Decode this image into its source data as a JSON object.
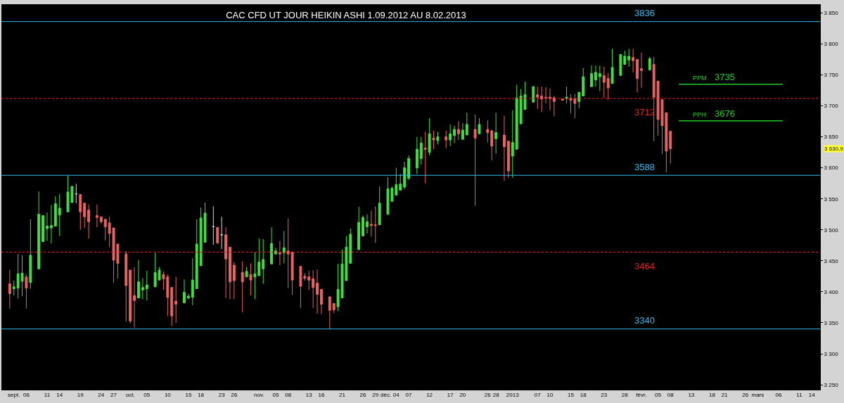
{
  "chart_data": {
    "type": "candlestick",
    "title": "CAC CFD UT JOUR HEIKIN ASHI 1.09.2012 AU 8.02.2013",
    "x": [
      "2012-09-02",
      "2012-09-03",
      "2012-09-04",
      "2012-09-05",
      "2012-09-06",
      "2012-09-07",
      "2012-09-09",
      "2012-09-10",
      "2012-09-11",
      "2012-09-12",
      "2012-09-13",
      "2012-09-14",
      "2012-09-16",
      "2012-09-17",
      "2012-09-18",
      "2012-09-19",
      "2012-09-20",
      "2012-09-21",
      "2012-09-23",
      "2012-09-24",
      "2012-09-25",
      "2012-09-26",
      "2012-09-27",
      "2012-09-28",
      "2012-09-30",
      "2012-10-01",
      "2012-10-02",
      "2012-10-03",
      "2012-10-04",
      "2012-10-05",
      "2012-10-07",
      "2012-10-08",
      "2012-10-09",
      "2012-10-10",
      "2012-10-11",
      "2012-10-12",
      "2012-10-14",
      "2012-10-15",
      "2012-10-16",
      "2012-10-17",
      "2012-10-18",
      "2012-10-19",
      "2012-10-21",
      "2012-10-22",
      "2012-10-23",
      "2012-10-24",
      "2012-10-25",
      "2012-10-26",
      "2012-10-28",
      "2012-10-29",
      "2012-10-30",
      "2012-10-31",
      "2012-11-01",
      "2012-11-02",
      "2012-11-04",
      "2012-11-05",
      "2012-11-06",
      "2012-11-07",
      "2012-11-08",
      "2012-11-09",
      "2012-11-11",
      "2012-11-12",
      "2012-11-13",
      "2012-11-14",
      "2012-11-15",
      "2012-11-16",
      "2012-11-18",
      "2012-11-19",
      "2012-11-20",
      "2012-11-21",
      "2012-11-22",
      "2012-11-23",
      "2012-11-25",
      "2012-11-26",
      "2012-11-27",
      "2012-11-28",
      "2012-11-29",
      "2012-11-30",
      "2012-12-02",
      "2012-12-03",
      "2012-12-04",
      "2012-12-05",
      "2012-12-06",
      "2012-12-07",
      "2012-12-09",
      "2012-12-10",
      "2012-12-11",
      "2012-12-12",
      "2012-12-13",
      "2012-12-14",
      "2012-12-16",
      "2012-12-17",
      "2012-12-18",
      "2012-12-19",
      "2012-12-20",
      "2012-12-21",
      "2012-12-23",
      "2012-12-24",
      "2012-12-26",
      "2012-12-27",
      "2012-12-28",
      "2012-12-30",
      "2012-12-31",
      "2013-01-01",
      "2013-01-02",
      "2013-01-03",
      "2013-01-04",
      "2013-01-06",
      "2013-01-07",
      "2013-01-08",
      "2013-01-09",
      "2013-01-10",
      "2013-01-11",
      "2013-01-13",
      "2013-01-14",
      "2013-01-15",
      "2013-01-16",
      "2013-01-17",
      "2013-01-18",
      "2013-01-20",
      "2013-01-21",
      "2013-01-22",
      "2013-01-23",
      "2013-01-24",
      "2013-01-25",
      "2013-01-27",
      "2013-01-28",
      "2013-01-29",
      "2013-01-30",
      "2013-01-31",
      "2013-02-01",
      "2013-02-03",
      "2013-02-04",
      "2013-02-05",
      "2013-02-06",
      "2013-02-07",
      "2013-02-08"
    ],
    "ohlc": [
      [
        3413,
        3435,
        3373,
        3397
      ],
      [
        3405,
        3418,
        3394,
        3408
      ],
      [
        3406,
        3461,
        3389,
        3429
      ],
      [
        3417,
        3459,
        3393,
        3430
      ],
      [
        3424,
        3428,
        3373,
        3406
      ],
      [
        3415,
        3517,
        3405,
        3459
      ],
      [
        3437,
        3562,
        3437,
        3525
      ],
      [
        3481,
        3523,
        3481,
        3523
      ],
      [
        3502,
        3528,
        3482,
        3506
      ],
      [
        3503,
        3540,
        3478,
        3507
      ],
      [
        3506,
        3554,
        3506,
        3542
      ],
      [
        3524,
        3558,
        3490,
        3535
      ],
      [
        3529,
        3588,
        3529,
        3561
      ],
      [
        3544,
        3571,
        3544,
        3570
      ],
      [
        3558,
        3574,
        3543,
        3558
      ],
      [
        3557,
        3557,
        3500,
        3529
      ],
      [
        3543,
        3543,
        3503,
        3521
      ],
      [
        3532,
        3541,
        3486,
        3513
      ],
      [
        3523,
        3541,
        3504,
        3520
      ],
      [
        3521,
        3521,
        3510,
        3513
      ],
      [
        3517,
        3517,
        3483,
        3505
      ],
      [
        3511,
        3521,
        3472,
        3494
      ],
      [
        3503,
        3503,
        3415,
        3451
      ],
      [
        3477,
        3477,
        3421,
        3446
      ],
      [
        3461,
        3466,
        3352,
        3410
      ],
      [
        3435,
        3435,
        3349,
        3353
      ],
      [
        3394,
        3440,
        3342,
        3386
      ],
      [
        3390,
        3451,
        3390,
        3416
      ],
      [
        3403,
        3422,
        3388,
        3407
      ],
      [
        3405,
        3434,
        3386,
        3411
      ],
      [
        3408,
        3463,
        3408,
        3431
      ],
      [
        3419,
        3440,
        3419,
        3435
      ],
      [
        3428,
        3433,
        3403,
        3421
      ],
      [
        3424,
        3428,
        3361,
        3391
      ],
      [
        3407,
        3407,
        3345,
        3361
      ],
      [
        3385,
        3424,
        3350,
        3380
      ],
      [
        3382,
        3420,
        3382,
        3399
      ],
      [
        3390,
        3397,
        3388,
        3393
      ],
      [
        3391,
        3454,
        3378,
        3419
      ],
      [
        3405,
        3517,
        3405,
        3477
      ],
      [
        3442,
        3536,
        3442,
        3519
      ],
      [
        3480,
        3544,
        3480,
        3527
      ],
      [
        3505,
        3538,
        3476,
        3505
      ],
      [
        3504,
        3504,
        3477,
        3479
      ],
      [
        3492,
        3521,
        3469,
        3492
      ],
      [
        3492,
        3504,
        3390,
        3453
      ],
      [
        3472,
        3472,
        3388,
        3416
      ],
      [
        3443,
        3448,
        3388,
        3418
      ],
      [
        3431,
        3449,
        3367,
        3416
      ],
      [
        3424,
        3440,
        3424,
        3433
      ],
      [
        3428,
        3446,
        3394,
        3419
      ],
      [
        3424,
        3464,
        3388,
        3429
      ],
      [
        3426,
        3486,
        3426,
        3448
      ],
      [
        3437,
        3485,
        3413,
        3452
      ],
      [
        3445,
        3504,
        3445,
        3478
      ],
      [
        3461,
        3471,
        3461,
        3466
      ],
      [
        3463,
        3482,
        3443,
        3461
      ],
      [
        3463,
        3498,
        3446,
        3471
      ],
      [
        3466,
        3518,
        3406,
        3461
      ],
      [
        3464,
        3464,
        3395,
        3419
      ],
      [
        3441,
        3441,
        3374,
        3409
      ],
      [
        3425,
        3430,
        3418,
        3422
      ],
      [
        3424,
        3434,
        3403,
        3419
      ],
      [
        3421,
        3435,
        3374,
        3407
      ],
      [
        3414,
        3436,
        3365,
        3396
      ],
      [
        3404,
        3404,
        3364,
        3380
      ],
      [
        3392,
        3392,
        3340,
        3370
      ],
      [
        3381,
        3381,
        3366,
        3371
      ],
      [
        3376,
        3445,
        3369,
        3404
      ],
      [
        3390,
        3468,
        3390,
        3445
      ],
      [
        3418,
        3490,
        3418,
        3472
      ],
      [
        3446,
        3502,
        3446,
        3493
      ],
      [
        3468,
        3537,
        3468,
        3512
      ],
      [
        3490,
        3523,
        3490,
        3520
      ],
      [
        3505,
        3525,
        3494,
        3513
      ],
      [
        3509,
        3531,
        3489,
        3507
      ],
      [
        3508,
        3538,
        3479,
        3507
      ],
      [
        3508,
        3570,
        3508,
        3543
      ],
      [
        3525,
        3585,
        3525,
        3566
      ],
      [
        3546,
        3570,
        3546,
        3567
      ],
      [
        3556,
        3600,
        3556,
        3573
      ],
      [
        3564,
        3590,
        3564,
        3574
      ],
      [
        3569,
        3610,
        3565,
        3600
      ],
      [
        3583,
        3620,
        3580,
        3615
      ],
      [
        3600,
        3650,
        3590,
        3630
      ],
      [
        3615,
        3650,
        3605,
        3640
      ],
      [
        3632,
        3658,
        3575,
        3630
      ],
      [
        3625,
        3680,
        3620,
        3655
      ],
      [
        3648,
        3660,
        3630,
        3645
      ],
      [
        3644,
        3658,
        3638,
        3650
      ],
      [
        3650,
        3660,
        3632,
        3645
      ],
      [
        3645,
        3670,
        3635,
        3655
      ],
      [
        3652,
        3668,
        3640,
        3662
      ],
      [
        3662,
        3675,
        3645,
        3655
      ],
      [
        3646,
        3672,
        3646,
        3661
      ],
      [
        3653,
        3689,
        3653,
        3670
      ],
      [
        3662,
        3686,
        3539,
        3648
      ],
      [
        3655,
        3680,
        3655,
        3670
      ],
      [
        3662,
        3677,
        3641,
        3657
      ],
      [
        3660,
        3660,
        3612,
        3635
      ],
      [
        3647,
        3689,
        3623,
        3657
      ],
      [
        3653,
        3684,
        3579,
        3634
      ],
      [
        3643,
        3643,
        3584,
        3595
      ],
      [
        3619,
        3693,
        3584,
        3641
      ],
      [
        3630,
        3734,
        3630,
        3713
      ],
      [
        3671,
        3727,
        3671,
        3716
      ],
      [
        3694,
        3739,
        3694,
        3718
      ],
      [
        3706,
        3732,
        3706,
        3731
      ],
      [
        3718,
        3731,
        3695,
        3714
      ],
      [
        3716,
        3731,
        3690,
        3711
      ],
      [
        3714,
        3730,
        3704,
        3713
      ],
      [
        3714,
        3728,
        3693,
        3712
      ],
      [
        3713,
        3716,
        3683,
        3707
      ],
      [
        3711,
        3711,
        3709,
        3709
      ],
      [
        3712,
        3731,
        3704,
        3714
      ],
      [
        3712,
        3719,
        3688,
        3709
      ],
      [
        3711,
        3719,
        3680,
        3704
      ],
      [
        3707,
        3722,
        3696,
        3722
      ],
      [
        3716,
        3761,
        3716,
        3747
      ],
      [
        3731,
        3765,
        3731,
        3752
      ],
      [
        3742,
        3765,
        3731,
        3754
      ],
      [
        3747,
        3765,
        3724,
        3752
      ],
      [
        3749,
        3763,
        3713,
        3738
      ],
      [
        3744,
        3753,
        3710,
        3729
      ],
      [
        3736,
        3792,
        3736,
        3762
      ],
      [
        3749,
        3783,
        3749,
        3783
      ],
      [
        3767,
        3789,
        3767,
        3780
      ],
      [
        3774,
        3792,
        3763,
        3780
      ],
      [
        3778,
        3792,
        3754,
        3773
      ],
      [
        3775,
        3775,
        3722,
        3744
      ],
      [
        3760,
        3786,
        3729,
        3757
      ],
      [
        3758,
        3779,
        3758,
        3776
      ],
      [
        3767,
        3779,
        3643,
        3714
      ],
      [
        3740,
        3740,
        3652,
        3678
      ],
      [
        3710,
        3710,
        3622,
        3668
      ],
      [
        3689,
        3689,
        3593,
        3627
      ],
      [
        3659,
        3659,
        3607,
        3630.9
      ]
    ],
    "colors": [
      "#e86464",
      "#44dd44",
      "#44dd44",
      "#44dd44",
      "#e86464",
      "#44dd44",
      "#44dd44",
      "#44dd44",
      "#44dd44",
      "#44dd44",
      "#44dd44",
      "#44dd44",
      "#44dd44",
      "#44dd44",
      "#dddddd",
      "#e86464",
      "#e86464",
      "#e86464",
      "#e86464",
      "#e86464",
      "#e86464",
      "#e86464",
      "#e86464",
      "#e86464",
      "#e86464",
      "#e86464",
      "#e86464",
      "#44dd44",
      "#44dd44",
      "#44dd44",
      "#44dd44",
      "#44dd44",
      "#e86464",
      "#e86464",
      "#e86464",
      "#e86464",
      "#44dd44",
      "#44dd44",
      "#44dd44",
      "#44dd44",
      "#44dd44",
      "#44dd44",
      "#dddddd",
      "#e86464",
      "#dddddd",
      "#e86464",
      "#e86464",
      "#e86464",
      "#e86464",
      "#44dd44",
      "#e86464",
      "#44dd44",
      "#44dd44",
      "#44dd44",
      "#44dd44",
      "#44dd44",
      "#e86464",
      "#44dd44",
      "#e86464",
      "#e86464",
      "#e86464",
      "#e86464",
      "#e86464",
      "#e86464",
      "#e86464",
      "#e86464",
      "#e86464",
      "#e86464",
      "#44dd44",
      "#44dd44",
      "#44dd44",
      "#44dd44",
      "#44dd44",
      "#44dd44",
      "#44dd44",
      "#e86464",
      "#e86464",
      "#44dd44",
      "#44dd44",
      "#44dd44",
      "#44dd44",
      "#44dd44",
      "#44dd44",
      "#44dd44",
      "#44dd44",
      "#44dd44",
      "#e86464",
      "#44dd44",
      "#e86464",
      "#44dd44",
      "#e86464",
      "#44dd44",
      "#44dd44",
      "#e86464",
      "#44dd44",
      "#44dd44",
      "#e86464",
      "#44dd44",
      "#e86464",
      "#e86464",
      "#44dd44",
      "#e86464",
      "#e86464",
      "#44dd44",
      "#44dd44",
      "#44dd44",
      "#44dd44",
      "#44dd44",
      "#e86464",
      "#e86464",
      "#e86464",
      "#e86464",
      "#e86464",
      "#e86464",
      "#44dd44",
      "#e86464",
      "#e86464",
      "#44dd44",
      "#44dd44",
      "#44dd44",
      "#44dd44",
      "#44dd44",
      "#e86464",
      "#e86464",
      "#44dd44",
      "#44dd44",
      "#44dd44",
      "#44dd44",
      "#e86464",
      "#e86464",
      "#e86464",
      "#44dd44",
      "#e86464",
      "#e86464",
      "#e86464",
      "#e86464",
      "#e86464"
    ],
    "series": [
      {
        "type": "line",
        "name": "PPM",
        "color": "#22cc22",
        "x": [
          "2013-02-10",
          "2013-03-07"
        ],
        "values": [
          3735,
          3735
        ]
      },
      {
        "type": "line",
        "name": "PPH",
        "color": "#22cc22",
        "x": [
          "2013-02-10",
          "2013-03-07"
        ],
        "values": [
          3676,
          3676
        ]
      }
    ],
    "ref_lines": [
      {
        "axis": "y",
        "value": 3836,
        "label": "3836",
        "color": "#33bbee",
        "line_style": "solid"
      },
      {
        "axis": "y",
        "value": 3712,
        "label": "3712",
        "color": "#dd2222",
        "line_style": "dotted"
      },
      {
        "axis": "y",
        "value": 3588,
        "label": "3588",
        "color": "#33bbee",
        "line_style": "solid"
      },
      {
        "axis": "y",
        "value": 3464,
        "label": "3464",
        "color": "#dd2222",
        "line_style": "dotted"
      },
      {
        "axis": "y",
        "value": 3340,
        "label": "3340",
        "color": "#33bbee",
        "line_style": "solid"
      }
    ],
    "annotations": [
      {
        "text": "3735",
        "x": "2013-02-21",
        "y": 3735
      },
      {
        "text": "3676",
        "x": "2013-02-21",
        "y": 3676
      },
      "3 630,9"
    ],
    "xlim": [
      "2012-08-31",
      "2013-03-16"
    ],
    "xticks": [
      {
        "value": "2012-09-03",
        "label": "sept."
      },
      {
        "value": "2012-09-06",
        "label": "06"
      },
      {
        "value": "2012-09-11",
        "label": "11"
      },
      {
        "value": "2012-09-14",
        "label": "14"
      },
      {
        "value": "2012-09-19",
        "label": "19"
      },
      {
        "value": "2012-09-24",
        "label": "24"
      },
      {
        "value": "2012-09-27",
        "label": "27"
      },
      {
        "value": "2012-10-01",
        "label": "oct."
      },
      {
        "value": "2012-10-05",
        "label": "05"
      },
      {
        "value": "2012-10-10",
        "label": "10"
      },
      {
        "value": "2012-10-15",
        "label": "15"
      },
      {
        "value": "2012-10-18",
        "label": "18"
      },
      {
        "value": "2012-10-23",
        "label": "23"
      },
      {
        "value": "2012-10-26",
        "label": "26"
      },
      {
        "value": "2012-11-01",
        "label": "nov."
      },
      {
        "value": "2012-11-05",
        "label": "05"
      },
      {
        "value": "2012-11-08",
        "label": "08"
      },
      {
        "value": "2012-11-13",
        "label": "13"
      },
      {
        "value": "2012-11-16",
        "label": "16"
      },
      {
        "value": "2012-11-21",
        "label": "21"
      },
      {
        "value": "2012-11-26",
        "label": "26"
      },
      {
        "value": "2012-11-29",
        "label": "29"
      },
      {
        "value": "2012-12-01T12:00",
        "label": "déc."
      },
      {
        "value": "2012-12-04",
        "label": "04"
      },
      {
        "value": "2012-12-07",
        "label": "07"
      },
      {
        "value": "2012-12-12",
        "label": "12"
      },
      {
        "value": "2012-12-17",
        "label": "17"
      },
      {
        "value": "2012-12-20",
        "label": "20"
      },
      {
        "value": "2012-12-26",
        "label": "26"
      },
      {
        "value": "2012-12-28",
        "label": "28"
      },
      {
        "value": "2013-01-01",
        "label": "2013"
      },
      {
        "value": "2013-01-07",
        "label": "07"
      },
      {
        "value": "2013-01-10",
        "label": "10"
      },
      {
        "value": "2013-01-15",
        "label": "15"
      },
      {
        "value": "2013-01-18",
        "label": "18"
      },
      {
        "value": "2013-01-23",
        "label": "23"
      },
      {
        "value": "2013-01-28",
        "label": "28"
      },
      {
        "value": "2013-02-01",
        "label": "févr."
      },
      {
        "value": "2013-02-05",
        "label": "05"
      },
      {
        "value": "2013-02-08",
        "label": "08"
      },
      {
        "value": "2013-02-13",
        "label": "13"
      },
      {
        "value": "2013-02-18",
        "label": "18"
      },
      {
        "value": "2013-02-21",
        "label": "21"
      },
      {
        "value": "2013-02-26",
        "label": "26"
      },
      {
        "value": "2013-03-01",
        "label": "mars"
      },
      {
        "value": "2013-03-06",
        "label": "06"
      },
      {
        "value": "2013-03-11",
        "label": "11"
      },
      {
        "value": "2013-03-14",
        "label": "14"
      }
    ],
    "ylim": [
      3241,
      3864
    ],
    "yticks": [
      {
        "value": 3250,
        "label": "3 250"
      },
      {
        "value": 3300,
        "label": "3 300"
      },
      {
        "value": 3350,
        "label": "3 350"
      },
      {
        "value": 3400,
        "label": "3 400"
      },
      {
        "value": 3450,
        "label": "3 450"
      },
      {
        "value": 3500,
        "label": "3 500"
      },
      {
        "value": 3550,
        "label": "3 550"
      },
      {
        "value": 3600,
        "label": "3 600"
      },
      {
        "value": 3650,
        "label": "3 650"
      },
      {
        "value": 3700,
        "label": "3 700"
      },
      {
        "value": 3750,
        "label": "3 750"
      },
      {
        "value": 3800,
        "label": "3 800"
      },
      {
        "value": 3850,
        "label": "3 850"
      }
    ],
    "grid": false,
    "legend": false
  }
}
